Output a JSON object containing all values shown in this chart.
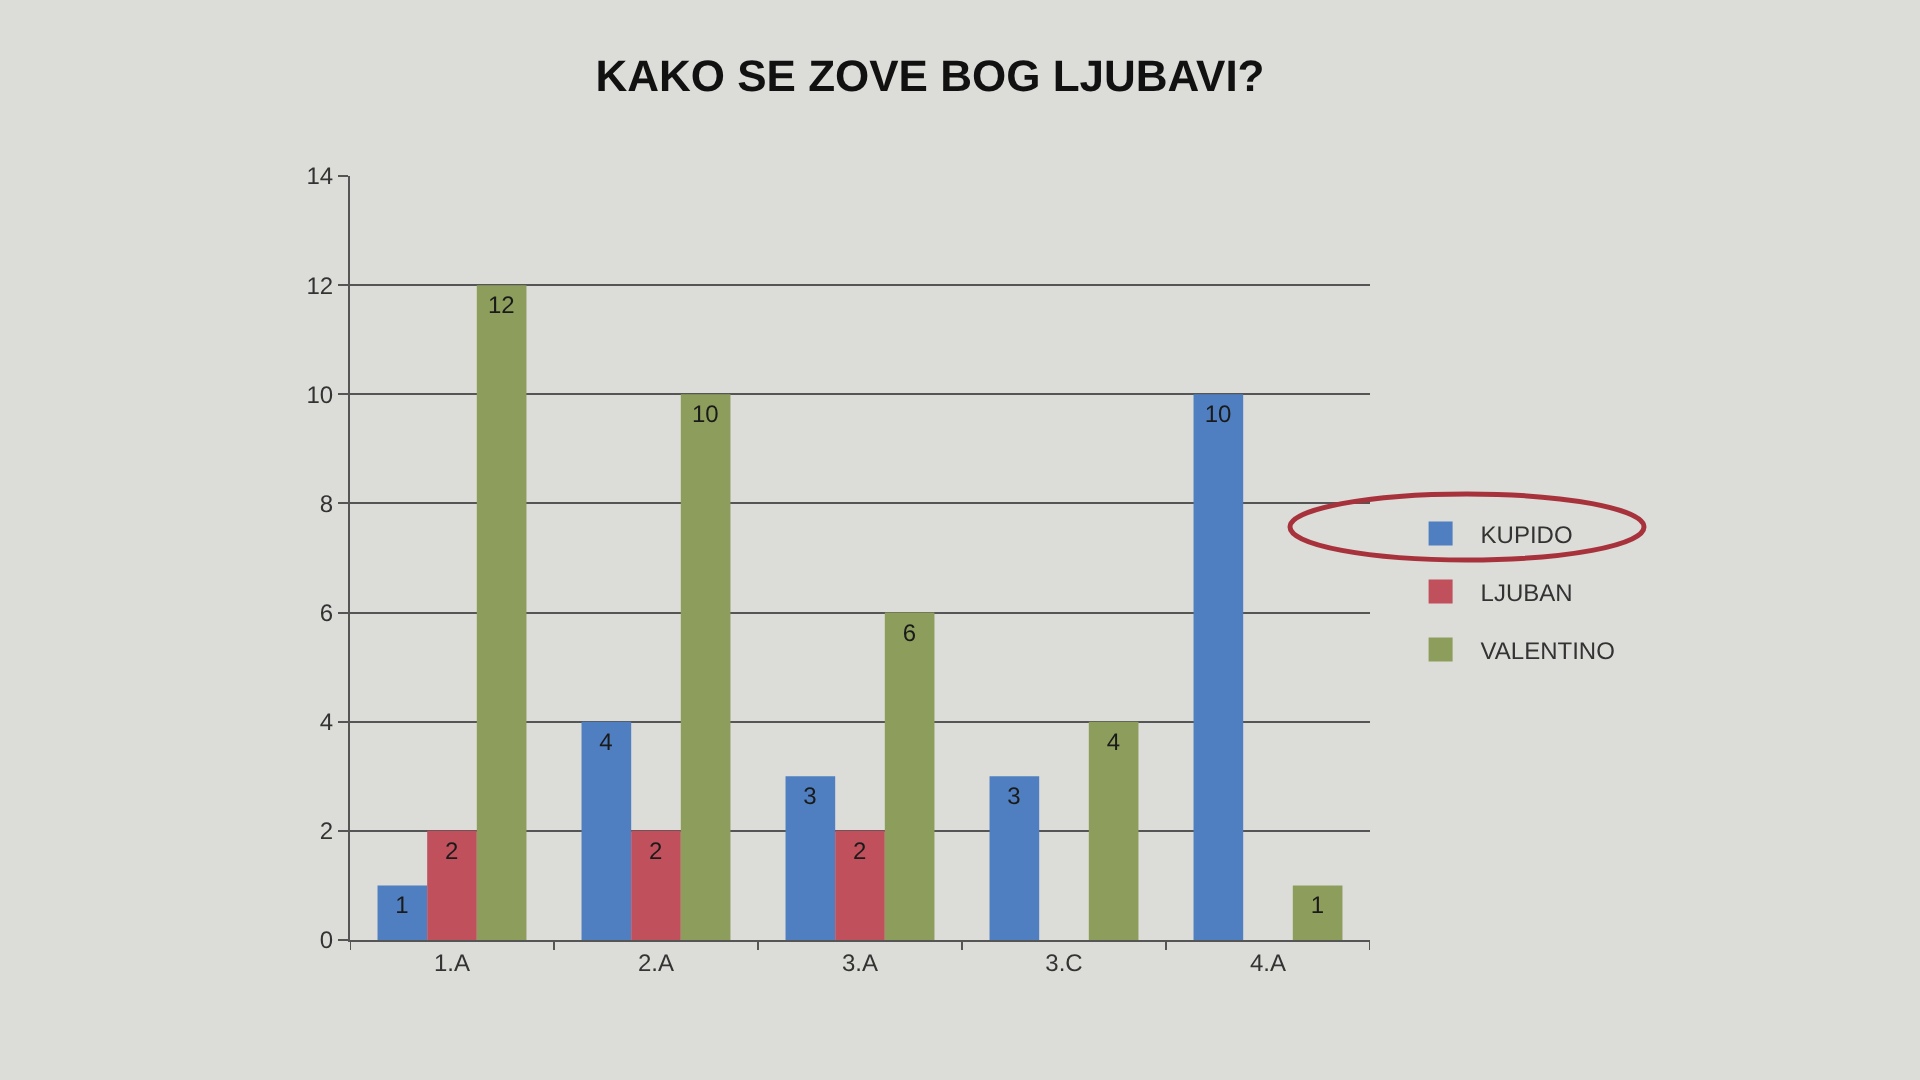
{
  "chart_data": {
    "type": "bar",
    "title": "KAKO SE ZOVE BOG LJUBAVI?",
    "categories": [
      "1.A",
      "2.A",
      "3.A",
      "3.C",
      "4.A"
    ],
    "series": [
      {
        "name": "KUPIDO",
        "color": "#4f7fc0",
        "values": [
          1,
          4,
          3,
          3,
          10
        ]
      },
      {
        "name": "LJUBAN",
        "color": "#c0505c",
        "values": [
          2,
          2,
          2,
          null,
          null
        ]
      },
      {
        "name": "VALENTINO",
        "color": "#8d9d5c",
        "values": [
          12,
          10,
          6,
          4,
          1
        ]
      }
    ],
    "ylim": [
      0,
      14
    ],
    "yticks": [
      0,
      2,
      4,
      6,
      8,
      10,
      12,
      14
    ],
    "grid": "y",
    "legend": "right",
    "data_labels": true
  }
}
